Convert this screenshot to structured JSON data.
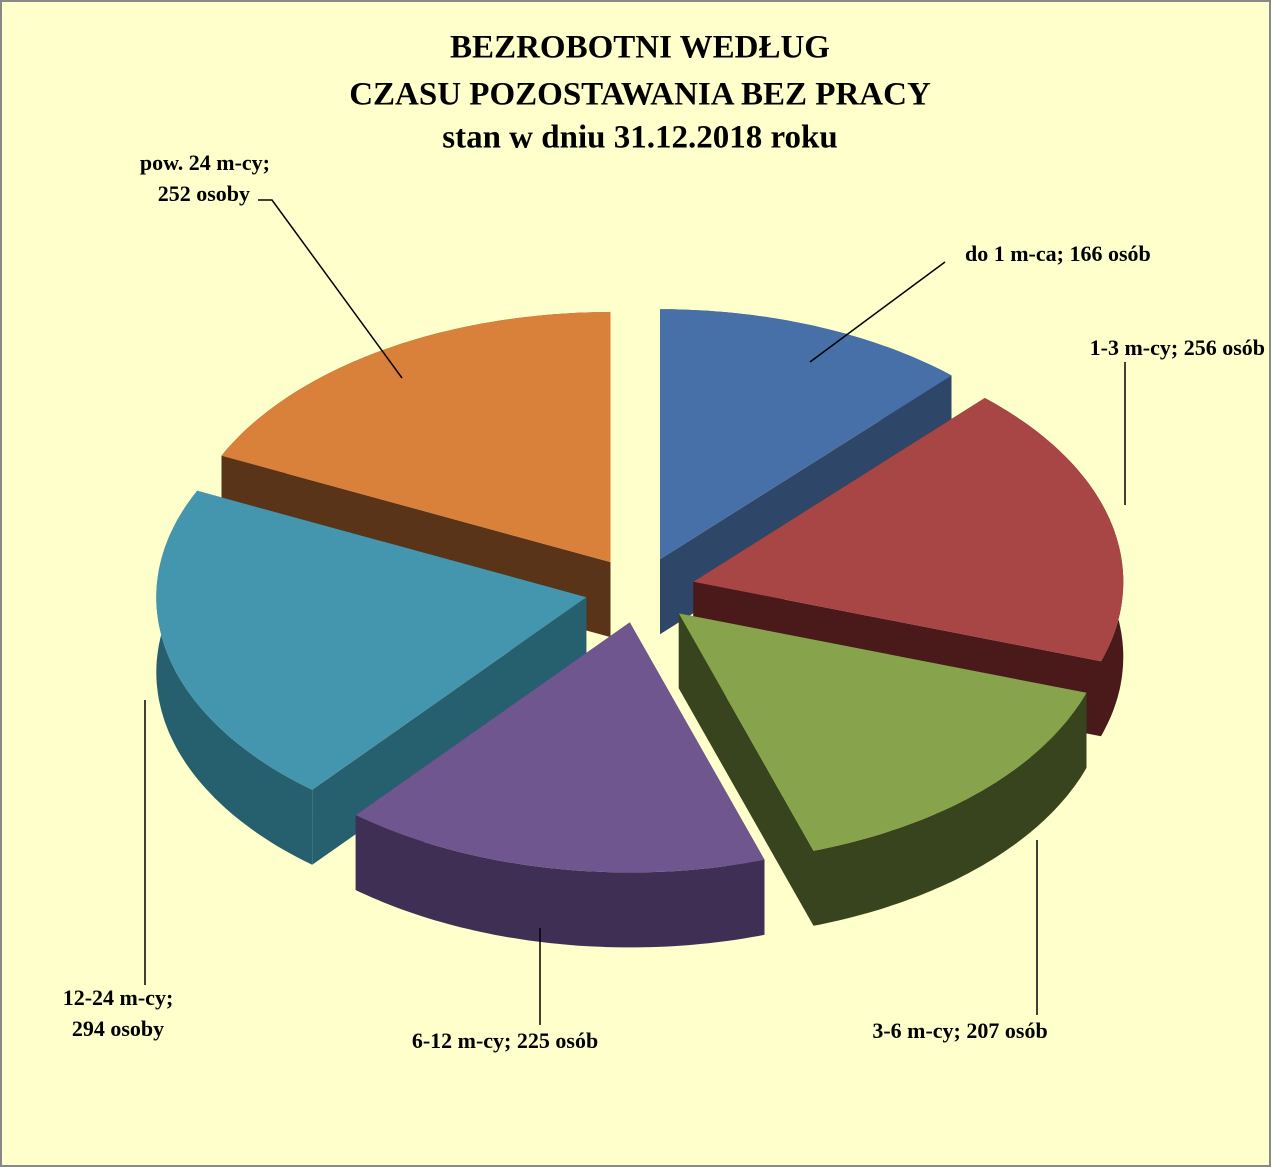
{
  "chart_data": {
    "type": "pie",
    "title": [
      "BEZROBOTNI WEDŁUG",
      "CZASU POZOSTAWANIA BEZ PRACY",
      "stan w dniu 31.12.2018 roku"
    ],
    "values": [
      166,
      256,
      207,
      225,
      294,
      252
    ],
    "value_labels": [
      [
        "do 1 m-ca; 166 osób"
      ],
      [
        "1-3 m-cy; 256 osób"
      ],
      [
        "3-6 m-cy; 207 osób"
      ],
      [
        "6-12 m-cy; 225 osób"
      ],
      [
        "12-24 m-cy;",
        "294 osoby"
      ],
      [
        "pow. 24 m-cy;",
        "252 osoby"
      ]
    ],
    "colors": [
      "#4870a8",
      "#a84545",
      "#87a34b",
      "#6f568f",
      "#4396ae",
      "#d9803a"
    ],
    "side_colors": [
      "#2e4668",
      "#4a1a1a",
      "#37441e",
      "#3f2f55",
      "#26606f",
      "#5a3418"
    ]
  }
}
